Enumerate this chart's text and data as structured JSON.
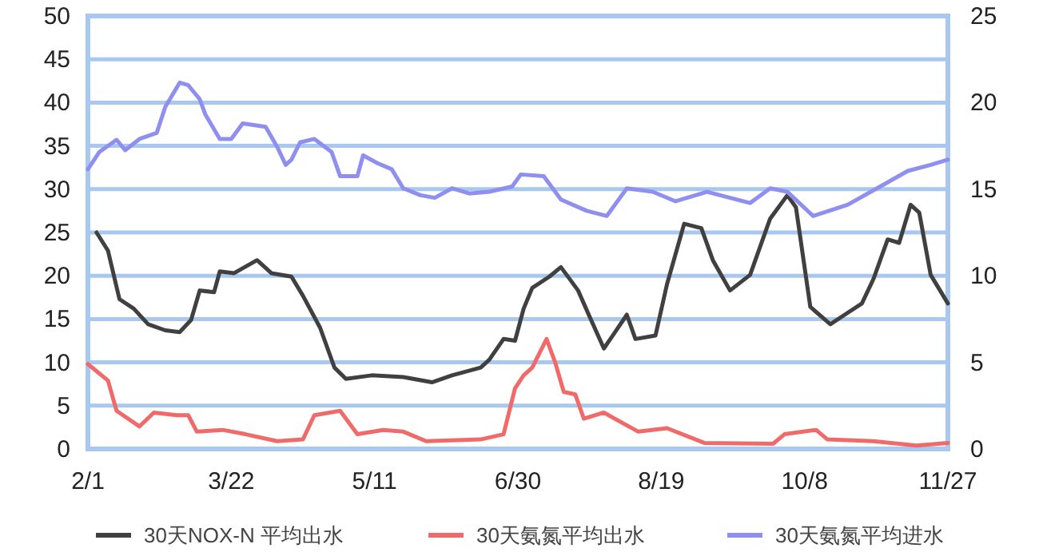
{
  "chart_data": {
    "type": "line",
    "xlim": [
      "--02-01",
      "--11-27"
    ],
    "xticks": [
      {
        "value": "--02-01",
        "label": "2/1"
      },
      {
        "value": "--03-22",
        "label": "3/22"
      },
      {
        "value": "--05-11",
        "label": "5/11"
      },
      {
        "value": "--06-30",
        "label": "6/30"
      },
      {
        "value": "--08-19",
        "label": "8/19"
      },
      {
        "value": "--10-08",
        "label": "10/8"
      },
      {
        "value": "--11-27",
        "label": "11/27"
      }
    ],
    "ylim": [
      0,
      50
    ],
    "yticks": [
      0,
      5,
      10,
      15,
      20,
      25,
      30,
      35,
      40,
      45,
      50
    ],
    "y2lim": [
      0,
      25
    ],
    "y2ticks": [
      0,
      5,
      10,
      15,
      20,
      25
    ],
    "grid": "y",
    "legend": "bottom",
    "line_style": "solid",
    "series": [
      {
        "name": "30天NOX-N 平均出水",
        "color": "#404040",
        "x": [
          "--02-04",
          "--02-08",
          "--02-12",
          "--02-17",
          "--02-22",
          "--02-28",
          "--03-04",
          "--03-08",
          "--03-11",
          "--03-16",
          "--03-18",
          "--03-23",
          "--03-31",
          "--04-05",
          "--04-12",
          "--04-16",
          "--04-22",
          "--04-27",
          "--05-01",
          "--05-10",
          "--05-21",
          "--05-31",
          "--06-07",
          "--06-17",
          "--06-20",
          "--06-25",
          "--06-29",
          "--07-02",
          "--07-05",
          "--07-11",
          "--07-15",
          "--07-21",
          "--07-25",
          "--07-30",
          "--08-07",
          "--08-10",
          "--08-17",
          "--08-21",
          "--08-27",
          "--09-02",
          "--09-06",
          "--09-12",
          "--09-19",
          "--09-26",
          "--10-02",
          "--10-05",
          "--10-10",
          "--10-17",
          "--10-22",
          "--10-28",
          "--11-01",
          "--11-06",
          "--11-10",
          "--11-14",
          "--11-17",
          "--11-21",
          "--11-27"
        ],
        "values": [
          25,
          22.9,
          17.3,
          16.2,
          14.4,
          13.7,
          13.5,
          14.9,
          18.3,
          18.1,
          20.5,
          20.3,
          21.8,
          20.3,
          19.9,
          17.7,
          14.0,
          9.4,
          8.1,
          8.5,
          8.3,
          7.7,
          8.5,
          9.4,
          10.3,
          12.7,
          12.5,
          16.2,
          18.6,
          19.9,
          21.0,
          18.3,
          15.3,
          11.6,
          15.5,
          12.7,
          13.1,
          19.0,
          26.0,
          25.5,
          21.8,
          18.3,
          20.1,
          26.6,
          29.3,
          27.9,
          16.4,
          14.4,
          15.5,
          16.8,
          19.6,
          24.2,
          23.8,
          28.2,
          27.3,
          20.1,
          16.8
        ]
      },
      {
        "name": "30天氨氮平均出水",
        "color": "#f06a6a",
        "x": [
          "--02-01",
          "--02-08",
          "--02-11",
          "--02-19",
          "--02-24",
          "--03-03",
          "--03-07",
          "--03-10",
          "--03-19",
          "--03-27",
          "--04-07",
          "--04-16",
          "--04-20",
          "--04-29",
          "--05-05",
          "--05-14",
          "--05-21",
          "--05-29",
          "--06-17",
          "--06-25",
          "--06-29",
          "--07-02",
          "--07-05",
          "--07-10",
          "--07-13",
          "--07-16",
          "--07-20",
          "--07-23",
          "--07-30",
          "--08-11",
          "--08-21",
          "--09-03",
          "--09-27",
          "--10-01",
          "--10-12",
          "--10-16",
          "--11-01",
          "--11-16",
          "--11-27"
        ],
        "values": [
          9.8,
          7.9,
          4.4,
          2.6,
          4.2,
          3.9,
          3.9,
          2.0,
          2.2,
          1.7,
          0.9,
          1.1,
          3.9,
          4.4,
          1.7,
          2.2,
          2.0,
          0.9,
          1.1,
          1.7,
          7.0,
          8.5,
          9.4,
          12.7,
          10.0,
          6.6,
          6.3,
          3.5,
          4.2,
          2.0,
          2.4,
          0.7,
          0.6,
          1.7,
          2.2,
          1.1,
          0.9,
          0.4,
          0.7
        ]
      },
      {
        "name": "30天氨氮平均进水",
        "color": "#8f8fef",
        "x": [
          "--02-01",
          "--02-05",
          "--02-11",
          "--02-14",
          "--02-19",
          "--02-25",
          "--02-28",
          "--03-04",
          "--03-07",
          "--03-11",
          "--03-13",
          "--03-18",
          "--03-22",
          "--03-26",
          "--04-03",
          "--04-07",
          "--04-10",
          "--04-12",
          "--04-15",
          "--04-20",
          "--04-26",
          "--04-29",
          "--05-05",
          "--05-07",
          "--05-12",
          "--05-17",
          "--05-21",
          "--05-27",
          "--06-01",
          "--06-07",
          "--06-13",
          "--06-20",
          "--06-28",
          "--07-01",
          "--07-09",
          "--07-15",
          "--07-24",
          "--07-31",
          "--08-07",
          "--08-16",
          "--08-24",
          "--09-04",
          "--09-19",
          "--09-26",
          "--10-02",
          "--10-11",
          "--10-23",
          "--11-05",
          "--11-13",
          "--11-21",
          "--11-27"
        ],
        "values": [
          32.3,
          34.3,
          35.7,
          34.5,
          35.8,
          36.5,
          39.5,
          42.3,
          42,
          40.4,
          38.6,
          35.8,
          35.8,
          37.6,
          37.2,
          34.9,
          32.8,
          33.4,
          35.4,
          35.8,
          34.3,
          31.5,
          31.5,
          33.9,
          33.0,
          32.3,
          30.1,
          29.3,
          29.0,
          30.1,
          29.5,
          29.7,
          30.3,
          31.7,
          31.5,
          28.8,
          27.5,
          26.9,
          30.1,
          29.7,
          28.6,
          29.7,
          28.4,
          30.1,
          29.7,
          26.9,
          28.2,
          30.6,
          32.1,
          32.8,
          33.4
        ]
      }
    ]
  }
}
